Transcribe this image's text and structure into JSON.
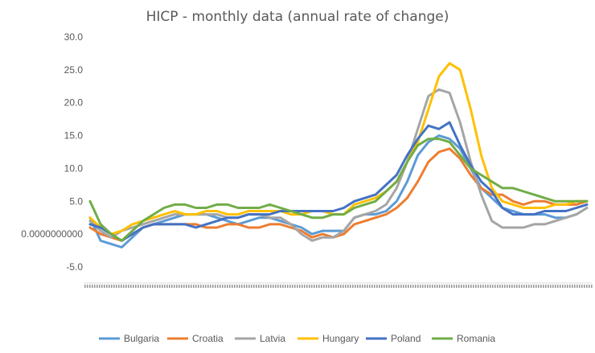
{
  "chart_data": {
    "type": "line",
    "title": "HICP - monthly data (annual rate of change)",
    "xlabel": "",
    "ylabel": "",
    "ylim": [
      -5,
      30
    ],
    "ytick_values": [
      -5,
      0,
      5,
      10,
      15,
      20,
      25,
      30
    ],
    "ytick_labels": [
      "-5.0",
      "0.0000000000",
      "5.0",
      "10.0",
      "15.0",
      "20.0",
      "25.0",
      "30.0"
    ],
    "x_axis_labels": "illegible dense monthly date labels",
    "gridlines": false,
    "legend_position": "bottom",
    "series": [
      {
        "name": "Bulgaria",
        "color": "#5B9BD5",
        "values": [
          2.5,
          -1.0,
          -1.5,
          -2.0,
          -0.5,
          1.0,
          1.5,
          2.0,
          2.5,
          3.0,
          3.0,
          3.0,
          2.5,
          2.0,
          1.5,
          2.0,
          2.5,
          2.5,
          2.0,
          1.5,
          1.0,
          0.0,
          0.5,
          0.5,
          0.5,
          2.5,
          3.0,
          3.0,
          3.5,
          5.0,
          8.0,
          12.0,
          14.0,
          15.0,
          14.5,
          13.0,
          10.0,
          7.0,
          5.5,
          4.0,
          3.5,
          3.0,
          3.0,
          3.0,
          2.5,
          2.5,
          3.0,
          4.0
        ]
      },
      {
        "name": "Croatia",
        "color": "#ED7D31",
        "values": [
          1.0,
          0.0,
          -0.5,
          -1.0,
          0.0,
          1.0,
          1.5,
          1.5,
          1.5,
          1.5,
          1.5,
          1.0,
          1.0,
          1.5,
          1.5,
          1.0,
          1.0,
          1.5,
          1.5,
          1.0,
          0.5,
          -0.5,
          0.0,
          -0.5,
          0.0,
          1.5,
          2.0,
          2.5,
          3.0,
          4.0,
          5.5,
          8.0,
          11.0,
          12.5,
          13.0,
          11.5,
          9.0,
          7.0,
          6.0,
          6.0,
          5.0,
          4.5,
          5.0,
          5.0,
          4.5,
          4.5,
          4.5,
          5.0
        ]
      },
      {
        "name": "Latvia",
        "color": "#A5A5A5",
        "values": [
          2.0,
          0.5,
          -0.5,
          0.5,
          1.0,
          1.5,
          2.0,
          2.5,
          3.0,
          3.0,
          3.0,
          3.0,
          3.0,
          2.5,
          2.5,
          3.0,
          3.0,
          2.5,
          2.5,
          1.5,
          0.0,
          -1.0,
          -0.5,
          -0.5,
          0.5,
          2.5,
          3.0,
          3.5,
          4.5,
          7.0,
          11.0,
          16.0,
          21.0,
          22.0,
          21.5,
          17.0,
          11.0,
          6.0,
          2.0,
          1.0,
          1.0,
          1.0,
          1.5,
          1.5,
          2.0,
          2.5,
          3.0,
          4.0
        ]
      },
      {
        "name": "Hungary",
        "color": "#FFC000",
        "values": [
          2.5,
          1.0,
          0.0,
          0.5,
          1.5,
          2.0,
          2.5,
          3.0,
          3.5,
          3.0,
          3.0,
          3.5,
          3.5,
          3.0,
          3.0,
          3.5,
          3.5,
          3.5,
          3.5,
          3.0,
          3.0,
          3.5,
          3.5,
          3.0,
          3.0,
          4.5,
          5.0,
          5.5,
          6.5,
          8.0,
          11.0,
          14.0,
          19.0,
          24.0,
          26.0,
          25.0,
          19.0,
          12.0,
          7.0,
          5.0,
          4.5,
          4.0,
          4.0,
          4.0,
          4.5,
          4.5,
          5.0,
          5.0
        ]
      },
      {
        "name": "Poland",
        "color": "#4472C4",
        "values": [
          1.5,
          1.0,
          0.0,
          -1.0,
          0.0,
          1.0,
          1.5,
          1.5,
          1.5,
          1.5,
          1.0,
          1.5,
          2.0,
          2.5,
          2.5,
          3.0,
          3.0,
          3.0,
          3.5,
          3.5,
          3.5,
          3.5,
          3.5,
          3.5,
          4.0,
          5.0,
          5.5,
          6.0,
          7.5,
          9.0,
          12.0,
          14.5,
          16.5,
          16.0,
          17.0,
          13.5,
          10.5,
          8.0,
          6.5,
          4.0,
          3.0,
          3.0,
          3.0,
          3.5,
          3.5,
          3.5,
          4.0,
          4.5
        ]
      },
      {
        "name": "Romania",
        "color": "#70AD47",
        "values": [
          5.0,
          1.5,
          0.0,
          -1.0,
          0.5,
          2.0,
          3.0,
          4.0,
          4.5,
          4.5,
          4.0,
          4.0,
          4.5,
          4.5,
          4.0,
          4.0,
          4.0,
          4.5,
          4.0,
          3.5,
          3.0,
          2.5,
          2.5,
          3.0,
          3.0,
          4.0,
          4.5,
          5.0,
          6.5,
          8.0,
          11.0,
          13.5,
          14.5,
          14.5,
          14.0,
          12.0,
          10.0,
          9.0,
          8.0,
          7.0,
          7.0,
          6.5,
          6.0,
          5.5,
          5.0,
          5.0,
          5.0,
          5.0
        ]
      }
    ]
  }
}
